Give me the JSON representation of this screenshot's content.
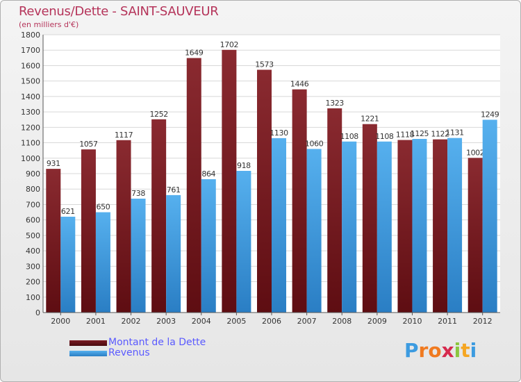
{
  "chart_data": {
    "type": "bar",
    "title": "Revenus/Dette - SAINT-SAUVEUR",
    "subtitle": "(en milliers d'€)",
    "categories": [
      "2000",
      "2001",
      "2002",
      "2003",
      "2004",
      "2005",
      "2006",
      "2007",
      "2008",
      "2009",
      "2010",
      "2011",
      "2012"
    ],
    "series": [
      {
        "name": "Montant de la Dette",
        "color": "#7a1a22",
        "values": [
          931,
          1057,
          1117,
          1252,
          1649,
          1702,
          1573,
          1446,
          1323,
          1221,
          1118,
          1122,
          1002
        ]
      },
      {
        "name": "Revenus",
        "color": "#3f9be0",
        "values": [
          621,
          650,
          738,
          761,
          864,
          918,
          1130,
          1060,
          1108,
          1108,
          1125,
          1131,
          1249
        ]
      }
    ],
    "ylim": [
      0,
      1800
    ],
    "ytick_step": 100,
    "xlabel": "",
    "ylabel": "",
    "grid": true,
    "legend": "bottom-left"
  },
  "logo": {
    "letters": [
      "P",
      "r",
      "o",
      "x",
      "i",
      "t",
      "i"
    ],
    "colors": [
      "#3c9be0",
      "#f07a20",
      "#f07a20",
      "#d62a4e",
      "#8cc63f",
      "#f5a623",
      "#3c9be0"
    ]
  }
}
